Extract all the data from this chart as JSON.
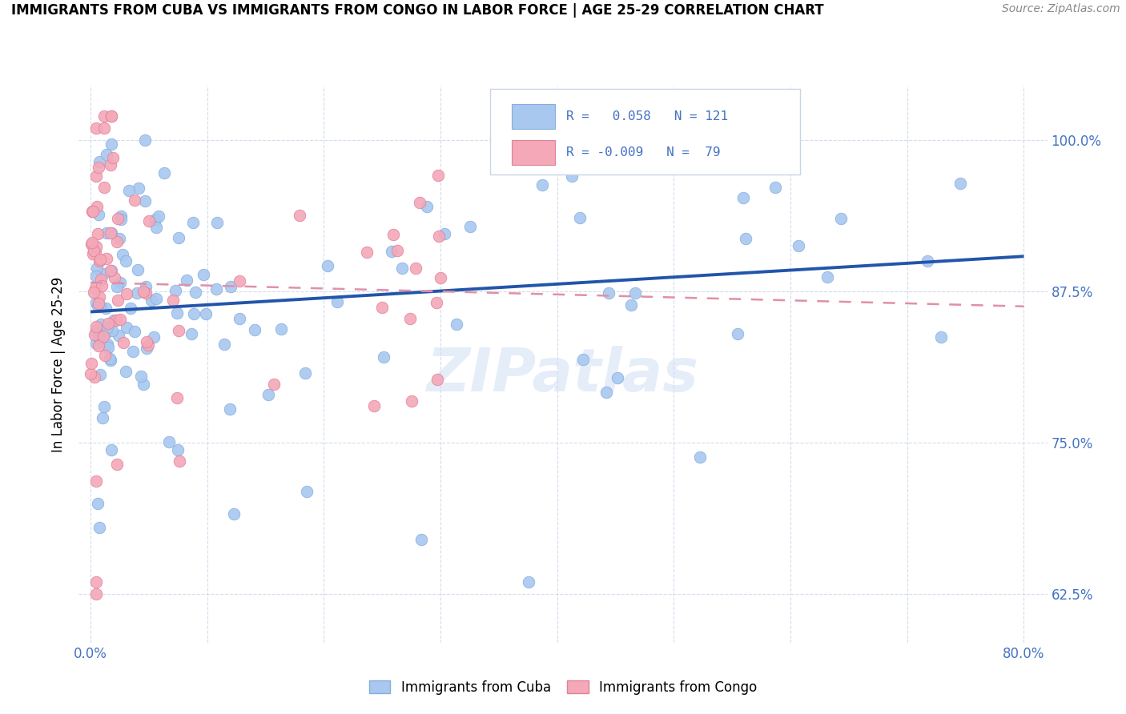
{
  "title": "IMMIGRANTS FROM CUBA VS IMMIGRANTS FROM CONGO IN LABOR FORCE | AGE 25-29 CORRELATION CHART",
  "source_text": "Source: ZipAtlas.com",
  "ylabel": "In Labor Force | Age 25-29",
  "xlim": [
    -0.01,
    0.82
  ],
  "ylim": [
    0.585,
    1.045
  ],
  "xtick_vals": [
    0.0,
    0.1,
    0.2,
    0.3,
    0.4,
    0.5,
    0.6,
    0.7,
    0.8
  ],
  "xtick_labels": [
    "0.0%",
    "",
    "",
    "",
    "",
    "",
    "",
    "",
    "80.0%"
  ],
  "ytick_vals": [
    0.625,
    0.75,
    0.875,
    1.0
  ],
  "ytick_labels": [
    "62.5%",
    "75.0%",
    "87.5%",
    "100.0%"
  ],
  "cuba_color": "#a8c8f0",
  "cuba_edge_color": "#85aedd",
  "congo_color": "#f4a8b8",
  "congo_edge_color": "#e08098",
  "cuba_line_color": "#2255aa",
  "congo_line_color": "#e090a8",
  "tick_color": "#4472c4",
  "grid_color": "#d0d8ec",
  "legend_color": "#4472c4",
  "watermark_color": "#ccddf5",
  "watermark_alpha": 0.5,
  "cuba_R": 0.058,
  "cuba_N": 121,
  "congo_R": -0.009,
  "congo_N": 79
}
